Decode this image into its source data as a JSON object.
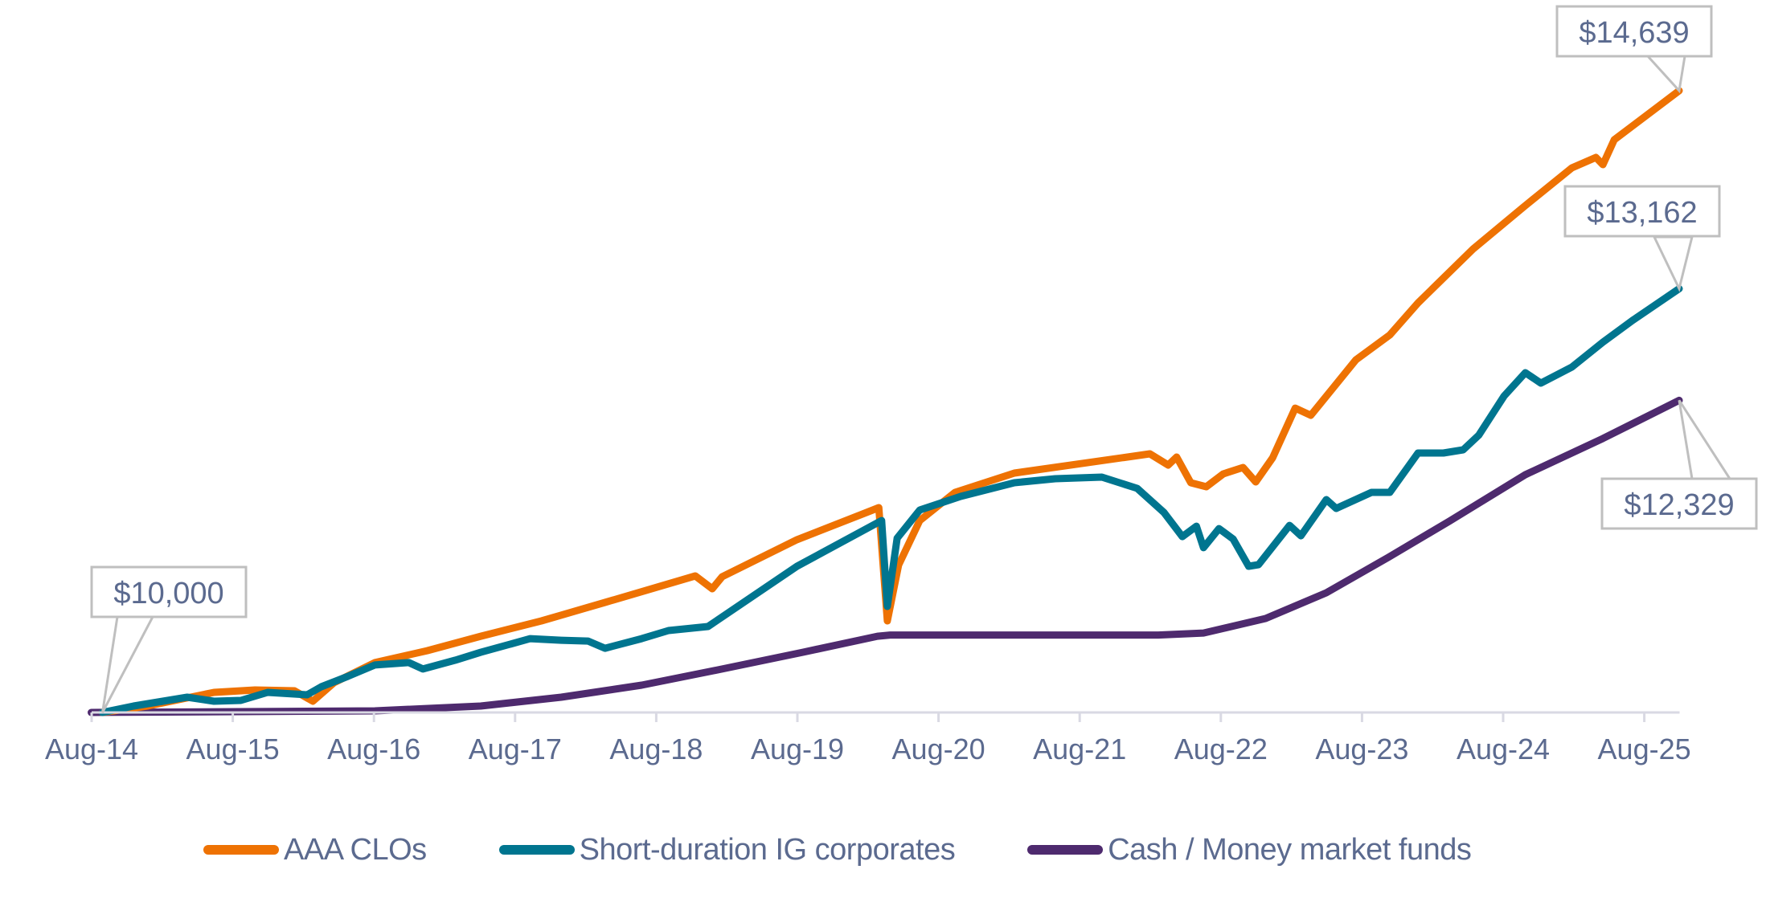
{
  "chart_data": {
    "type": "line",
    "title": "",
    "xlabel": "",
    "ylabel": "",
    "x_unit": "decimal year",
    "x_ticks": [
      {
        "label": "Aug-14",
        "x": 2014.583
      },
      {
        "label": "Aug-15",
        "x": 2015.583
      },
      {
        "label": "Aug-16",
        "x": 2016.583
      },
      {
        "label": "Aug-17",
        "x": 2017.583
      },
      {
        "label": "Aug-18",
        "x": 2018.583
      },
      {
        "label": "Aug-19",
        "x": 2019.583
      },
      {
        "label": "Aug-20",
        "x": 2020.583
      },
      {
        "label": "Aug-21",
        "x": 2021.583
      },
      {
        "label": "Aug-22",
        "x": 2022.583
      },
      {
        "label": "Aug-23",
        "x": 2023.583
      },
      {
        "label": "Aug-24",
        "x": 2024.583
      },
      {
        "label": "Aug-25",
        "x": 2025.583
      }
    ],
    "xlim": [
      2014.583,
      2025.833
    ],
    "ylim": [
      10000,
      14639
    ],
    "y_axis_visible": false,
    "grid": false,
    "legend_position": "bottom",
    "series": [
      {
        "name": "AAA CLOs",
        "color": "#EE7203",
        "points": [
          [
            2014.66,
            10000
          ],
          [
            2014.98,
            10048
          ],
          [
            2015.45,
            10150
          ],
          [
            2015.74,
            10168
          ],
          [
            2016.02,
            10162
          ],
          [
            2016.15,
            10084
          ],
          [
            2016.3,
            10222
          ],
          [
            2016.59,
            10372
          ],
          [
            2016.96,
            10461
          ],
          [
            2017.34,
            10569
          ],
          [
            2017.77,
            10683
          ],
          [
            2018.22,
            10821
          ],
          [
            2018.86,
            11019
          ],
          [
            2018.98,
            10923
          ],
          [
            2019.05,
            11013
          ],
          [
            2019.58,
            11289
          ],
          [
            2020.16,
            11528
          ],
          [
            2020.22,
            10683
          ],
          [
            2020.3,
            11100
          ],
          [
            2020.45,
            11432
          ],
          [
            2020.7,
            11642
          ],
          [
            2021.12,
            11786
          ],
          [
            2022.08,
            11930
          ],
          [
            2022.21,
            11846
          ],
          [
            2022.27,
            11906
          ],
          [
            2022.37,
            11714
          ],
          [
            2022.48,
            11684
          ],
          [
            2022.6,
            11780
          ],
          [
            2022.74,
            11828
          ],
          [
            2022.83,
            11720
          ],
          [
            2022.95,
            11900
          ],
          [
            2023.11,
            12271
          ],
          [
            2023.22,
            12217
          ],
          [
            2023.54,
            12631
          ],
          [
            2023.78,
            12817
          ],
          [
            2023.98,
            13056
          ],
          [
            2024.37,
            13458
          ],
          [
            2024.74,
            13782
          ],
          [
            2025.07,
            14063
          ],
          [
            2025.24,
            14141
          ],
          [
            2025.29,
            14087
          ],
          [
            2025.37,
            14273
          ],
          [
            2025.83,
            14639
          ]
        ],
        "end_label": "$14,639"
      },
      {
        "name": "Short-duration IG corporates",
        "color": "#00758F",
        "points": [
          [
            2014.66,
            10000
          ],
          [
            2014.88,
            10048
          ],
          [
            2015.26,
            10114
          ],
          [
            2015.45,
            10084
          ],
          [
            2015.64,
            10090
          ],
          [
            2015.83,
            10150
          ],
          [
            2016.11,
            10132
          ],
          [
            2016.21,
            10192
          ],
          [
            2016.4,
            10270
          ],
          [
            2016.59,
            10354
          ],
          [
            2016.83,
            10372
          ],
          [
            2016.93,
            10324
          ],
          [
            2017.16,
            10390
          ],
          [
            2017.34,
            10449
          ],
          [
            2017.69,
            10551
          ],
          [
            2017.91,
            10539
          ],
          [
            2018.1,
            10533
          ],
          [
            2018.22,
            10479
          ],
          [
            2018.48,
            10551
          ],
          [
            2018.67,
            10611
          ],
          [
            2018.95,
            10641
          ],
          [
            2019.58,
            11091
          ],
          [
            2020.18,
            11432
          ],
          [
            2020.22,
            10791
          ],
          [
            2020.29,
            11300
          ],
          [
            2020.45,
            11510
          ],
          [
            2020.74,
            11612
          ],
          [
            2021.12,
            11714
          ],
          [
            2021.41,
            11744
          ],
          [
            2021.74,
            11756
          ],
          [
            2021.99,
            11672
          ],
          [
            2022.18,
            11492
          ],
          [
            2022.31,
            11312
          ],
          [
            2022.41,
            11390
          ],
          [
            2022.46,
            11229
          ],
          [
            2022.57,
            11372
          ],
          [
            2022.67,
            11294
          ],
          [
            2022.78,
            11091
          ],
          [
            2022.85,
            11103
          ],
          [
            2023.07,
            11396
          ],
          [
            2023.15,
            11318
          ],
          [
            2023.33,
            11588
          ],
          [
            2023.4,
            11522
          ],
          [
            2023.65,
            11642
          ],
          [
            2023.78,
            11642
          ],
          [
            2023.98,
            11936
          ],
          [
            2024.16,
            11936
          ],
          [
            2024.3,
            11960
          ],
          [
            2024.41,
            12068
          ],
          [
            2024.59,
            12361
          ],
          [
            2024.74,
            12535
          ],
          [
            2024.85,
            12457
          ],
          [
            2025.07,
            12577
          ],
          [
            2025.29,
            12763
          ],
          [
            2025.5,
            12925
          ],
          [
            2025.83,
            13162
          ]
        ],
        "end_label": "$13,162"
      },
      {
        "name": "Cash / Money market funds",
        "color": "#4E2A6E",
        "points": [
          [
            2014.58,
            10000
          ],
          [
            2016.59,
            10012
          ],
          [
            2017.34,
            10048
          ],
          [
            2017.91,
            10114
          ],
          [
            2018.48,
            10204
          ],
          [
            2019.05,
            10324
          ],
          [
            2019.62,
            10449
          ],
          [
            2020.15,
            10569
          ],
          [
            2020.24,
            10578
          ],
          [
            2022.14,
            10578
          ],
          [
            2022.46,
            10593
          ],
          [
            2022.9,
            10701
          ],
          [
            2023.33,
            10893
          ],
          [
            2023.77,
            11157
          ],
          [
            2024.2,
            11426
          ],
          [
            2024.74,
            11774
          ],
          [
            2025.29,
            12044
          ],
          [
            2025.83,
            12329
          ]
        ],
        "end_label": "$12,329"
      }
    ],
    "annotations": [
      {
        "text": "$10,000",
        "x": 2014.66,
        "y": 10000,
        "placement": "above"
      },
      {
        "text": "$14,639",
        "x": 2025.83,
        "y": 14639,
        "placement": "above"
      },
      {
        "text": "$13,162",
        "x": 2025.83,
        "y": 13162,
        "placement": "above"
      },
      {
        "text": "$12,329",
        "x": 2025.83,
        "y": 12329,
        "placement": "below"
      }
    ]
  },
  "legend": {
    "items": [
      {
        "label": "AAA CLOs",
        "color": "#EE7203"
      },
      {
        "label": "Short-duration IG corporates",
        "color": "#00758F"
      },
      {
        "label": "Cash / Money market funds",
        "color": "#4E2A6E"
      }
    ]
  },
  "colors": {
    "axis": "#D9D9E3",
    "text": "#5B6A8F",
    "callout_border": "#BFBFBF"
  }
}
